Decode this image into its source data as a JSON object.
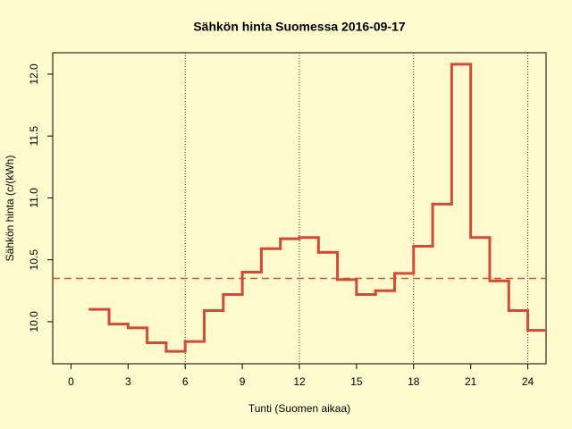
{
  "chart_data": {
    "type": "step",
    "title": "Sähkön hinta Suomessa 2016-09-17",
    "x_label": "Tunti (Suomen aikaa)",
    "y_label": "Sähkön hinta (c/(kWh)",
    "x": [
      1,
      2,
      3,
      4,
      5,
      6,
      7,
      8,
      9,
      10,
      11,
      12,
      13,
      14,
      15,
      16,
      17,
      18,
      19,
      20,
      21,
      22,
      23,
      24
    ],
    "series": [
      {
        "color": "#d14b35",
        "values": [
          10.1,
          9.98,
          9.95,
          9.83,
          9.76,
          9.84,
          10.09,
          10.22,
          10.4,
          10.59,
          10.67,
          10.68,
          10.56,
          10.34,
          10.22,
          10.25,
          10.39,
          10.61,
          10.95,
          12.08,
          10.68,
          10.33,
          10.09,
          9.93
        ]
      }
    ],
    "mean": 10.35,
    "xlim": [
      -0.96,
      24.96
    ],
    "xticks": [
      0,
      3,
      6,
      9,
      12,
      15,
      18,
      21,
      24
    ],
    "ylim": [
      9.66,
      12.173
    ],
    "yticks": [
      {
        "value": 10,
        "label": "10.0"
      },
      10.5,
      {
        "value": 11,
        "label": "11.0"
      },
      11.5,
      {
        "value": 12,
        "label": "12.0"
      }
    ],
    "x_gridlines": [
      6,
      12,
      18,
      24
    ]
  }
}
